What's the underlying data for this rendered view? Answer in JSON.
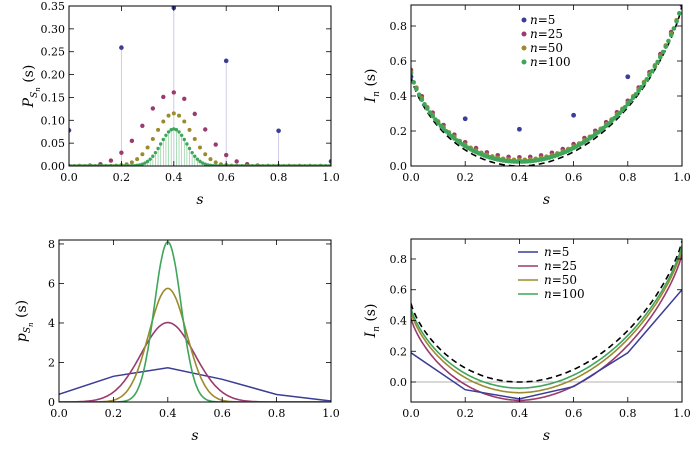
{
  "colors": {
    "n5": "#3b3d96",
    "n25": "#9a3a6e",
    "n50": "#9b8a2e",
    "n100": "#3fa55a",
    "limit": "#000000",
    "stem": "#c8c8e6",
    "zero": "#b0b0b0"
  },
  "chart_data": [
    {
      "id": "p1",
      "type": "scatter",
      "subtype": "stem",
      "xlabel": "s",
      "ylabel": {
        "main": "P",
        "sub": "S",
        "subsub": "n",
        "tail": "(s)"
      },
      "xlim": [
        0,
        1
      ],
      "ylim": [
        0,
        0.35
      ],
      "xticks": [
        "0.0",
        "0.2",
        "0.4",
        "0.6",
        "0.8",
        "1.0"
      ],
      "xtick_values": [
        0,
        0.2,
        0.4,
        0.6,
        0.8,
        1.0
      ],
      "yticks": [
        "0.00",
        "0.05",
        "0.10",
        "0.15",
        "0.20",
        "0.25",
        "0.30",
        "0.35"
      ],
      "ytick_values": [
        0,
        0.05,
        0.1,
        0.15,
        0.2,
        0.25,
        0.3,
        0.35
      ],
      "series": [
        {
          "name": "n=5",
          "color_key": "n5",
          "x": [
            0,
            0.2,
            0.4,
            0.6,
            0.8,
            1.0
          ],
          "values": [
            0.078,
            0.259,
            0.346,
            0.23,
            0.077,
            0.01
          ]
        },
        {
          "name": "n=25",
          "color_key": "n25",
          "x": [
            0,
            0.04,
            0.08,
            0.12,
            0.16,
            0.2,
            0.24,
            0.28,
            0.32,
            0.36,
            0.4,
            0.44,
            0.48,
            0.52,
            0.56,
            0.6,
            0.64,
            0.68,
            0.72,
            0.76,
            0.8,
            0.84,
            0.88,
            0.92,
            0.96,
            1.0
          ],
          "values": [
            0,
            0,
            0.001,
            0.004,
            0.012,
            0.029,
            0.055,
            0.088,
            0.126,
            0.151,
            0.161,
            0.147,
            0.114,
            0.08,
            0.047,
            0.024,
            0.01,
            0.004,
            0.001,
            0,
            0,
            0,
            0,
            0,
            0,
            0
          ]
        },
        {
          "name": "n=50",
          "color_key": "n50",
          "density": 50,
          "peak": 0.115,
          "mean": 0.4,
          "sd": 0.0693
        },
        {
          "name": "n=100",
          "color_key": "n100",
          "density": 100,
          "peak": 0.081,
          "mean": 0.4,
          "sd": 0.049
        }
      ]
    },
    {
      "id": "p2",
      "type": "scatter",
      "xlabel": "s",
      "ylabel": {
        "main": "I",
        "sub": "n",
        "tail": "(s)"
      },
      "xlim": [
        0,
        1
      ],
      "ylim": [
        0,
        0.92
      ],
      "xticks": [
        "0.0",
        "0.2",
        "0.4",
        "0.6",
        "0.8",
        "1.0"
      ],
      "xtick_values": [
        0,
        0.2,
        0.4,
        0.6,
        0.8,
        1.0
      ],
      "yticks": [
        "0.0",
        "0.2",
        "0.4",
        "0.6",
        "0.8"
      ],
      "ytick_values": [
        0,
        0.2,
        0.4,
        0.6,
        0.8
      ],
      "legend": {
        "placement": "top-center",
        "entries": [
          {
            "n": "n",
            "eq": "=5",
            "color_key": "n5"
          },
          {
            "n": "n",
            "eq": "=25",
            "color_key": "n25"
          },
          {
            "n": "n",
            "eq": "=50",
            "color_key": "n50"
          },
          {
            "n": "n",
            "eq": "=100",
            "color_key": "n100"
          }
        ]
      },
      "series": [
        {
          "name": "n=5",
          "color_key": "n5",
          "x": [
            0,
            0.2,
            0.4,
            0.6,
            0.8,
            1.0
          ],
          "values": [
            0.51,
            0.27,
            0.21,
            0.29,
            0.51,
            0.92
          ]
        },
        {
          "name": "n=25",
          "color_key": "n25",
          "points": 26,
          "offset": 0.05
        },
        {
          "name": "n=50",
          "color_key": "n50",
          "points": 51,
          "offset": 0.035
        },
        {
          "name": "n=100",
          "color_key": "n100",
          "points": 101,
          "offset": 0.025
        },
        {
          "name": "limit",
          "color_key": "limit",
          "style": "dashed"
        }
      ]
    },
    {
      "id": "p3",
      "type": "line",
      "xlabel": "s",
      "ylabel": {
        "main": "p",
        "sub": "S",
        "subsub": "n",
        "tail": "(s)"
      },
      "xlim": [
        0,
        1
      ],
      "ylim": [
        0,
        8.2
      ],
      "xticks": [
        "0.0",
        "0.2",
        "0.4",
        "0.6",
        "0.8",
        "1.0"
      ],
      "xtick_values": [
        0,
        0.2,
        0.4,
        0.6,
        0.8,
        1.0
      ],
      "yticks": [
        "0",
        "2",
        "4",
        "6",
        "8"
      ],
      "ytick_values": [
        0,
        2,
        4,
        6,
        8
      ],
      "series": [
        {
          "name": "n=5",
          "color_key": "n5",
          "x": [
            0,
            0.2,
            0.4,
            0.6,
            0.8,
            1.0
          ],
          "values": [
            0.39,
            1.3,
            1.73,
            1.15,
            0.38,
            0.05
          ]
        },
        {
          "name": "n=25",
          "color_key": "n25",
          "peak": 4.02,
          "mean": 0.4,
          "sd": 0.098
        },
        {
          "name": "n=50",
          "color_key": "n50",
          "peak": 5.75,
          "mean": 0.4,
          "sd": 0.0693
        },
        {
          "name": "n=100",
          "color_key": "n100",
          "peak": 8.1,
          "mean": 0.4,
          "sd": 0.049
        }
      ]
    },
    {
      "id": "p4",
      "type": "line",
      "xlabel": "s",
      "ylabel": {
        "main": "I",
        "sub": "n",
        "tail": "(s)"
      },
      "xlim": [
        0,
        1
      ],
      "ylim": [
        -0.13,
        0.93
      ],
      "xticks": [
        "0.0",
        "0.2",
        "0.4",
        "0.6",
        "0.8",
        "1.0"
      ],
      "xtick_values": [
        0,
        0.2,
        0.4,
        0.6,
        0.8,
        1.0
      ],
      "yticks": [
        "0.0",
        "0.2",
        "0.4",
        "0.6",
        "0.8"
      ],
      "ytick_values": [
        0,
        0.2,
        0.4,
        0.6,
        0.8
      ],
      "legend": {
        "placement": "top-center",
        "entries": [
          {
            "n": "n",
            "eq": "=5",
            "color_key": "n5"
          },
          {
            "n": "n",
            "eq": "=25",
            "color_key": "n25"
          },
          {
            "n": "n",
            "eq": "=50",
            "color_key": "n50"
          },
          {
            "n": "n",
            "eq": "=100",
            "color_key": "n100"
          }
        ]
      },
      "series": [
        {
          "name": "n=5",
          "color_key": "n5",
          "x": [
            0,
            0.2,
            0.4,
            0.6,
            0.8,
            1.0
          ],
          "values": [
            0.19,
            -0.05,
            -0.11,
            -0.03,
            0.19,
            0.6
          ]
        },
        {
          "name": "n=25",
          "color_key": "n25",
          "offset": -0.12
        },
        {
          "name": "n=50",
          "color_key": "n50",
          "offset": -0.07
        },
        {
          "name": "n=100",
          "color_key": "n100",
          "offset": -0.04
        },
        {
          "name": "limit",
          "color_key": "limit",
          "style": "dashed"
        }
      ]
    }
  ]
}
